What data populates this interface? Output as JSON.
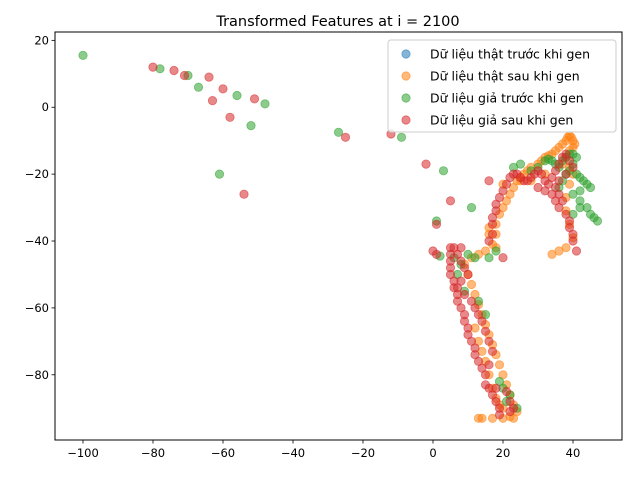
{
  "chart_data": {
    "type": "scatter",
    "title": "Transformed Features at i = 2100",
    "xlabel": "",
    "ylabel": "",
    "xlim": [
      -108,
      54
    ],
    "ylim": [
      -99.5,
      22.5
    ],
    "xticks": [
      -100,
      -80,
      -60,
      -40,
      -20,
      0,
      20,
      40
    ],
    "yticks": [
      20,
      0,
      -20,
      -40,
      -60,
      -80
    ],
    "grid": false,
    "legend_position": "top-right",
    "marker_opacity": 0.55,
    "series": [
      {
        "name": "Dữ liệu thật trước khi gen",
        "color": "#1f77b4",
        "points": []
      },
      {
        "name": "Dữ liệu thật sau khi gen",
        "color": "#ff7f0e",
        "points": [
          [
            13,
            -93
          ],
          [
            14,
            -93
          ],
          [
            17,
            -93
          ],
          [
            20,
            -93
          ],
          [
            22,
            -92.5
          ],
          [
            23,
            -93
          ],
          [
            24,
            -91
          ],
          [
            23,
            -89
          ],
          [
            22,
            -86
          ],
          [
            21,
            -83
          ],
          [
            20,
            -80
          ],
          [
            19,
            -77
          ],
          [
            18,
            -74
          ],
          [
            17,
            -71
          ],
          [
            16,
            -68
          ],
          [
            15,
            -65
          ],
          [
            14,
            -62
          ],
          [
            13,
            -59
          ],
          [
            12,
            -56
          ],
          [
            11,
            -53
          ],
          [
            10,
            -50
          ],
          [
            9,
            -47
          ],
          [
            11,
            -45
          ],
          [
            13,
            -44
          ],
          [
            15,
            -43
          ],
          [
            17,
            -41
          ],
          [
            18,
            -38
          ],
          [
            18,
            -35
          ],
          [
            19,
            -32
          ],
          [
            20,
            -30
          ],
          [
            21,
            -28
          ],
          [
            22,
            -26
          ],
          [
            23,
            -24
          ],
          [
            24,
            -22
          ],
          [
            25,
            -21
          ],
          [
            26,
            -20
          ],
          [
            27,
            -19
          ],
          [
            28,
            -18
          ],
          [
            30,
            -17
          ],
          [
            31,
            -16
          ],
          [
            32,
            -15
          ],
          [
            33,
            -14.5
          ],
          [
            34,
            -14
          ],
          [
            35,
            -13
          ],
          [
            36,
            -12
          ],
          [
            37,
            -11
          ],
          [
            38,
            -10
          ],
          [
            38.5,
            -9
          ],
          [
            39,
            -8.5
          ],
          [
            39.5,
            -9
          ],
          [
            40,
            -10
          ],
          [
            40.5,
            -11
          ],
          [
            40,
            -12
          ],
          [
            39,
            -13
          ],
          [
            38,
            -15
          ],
          [
            37,
            -17
          ],
          [
            39,
            -18
          ],
          [
            40,
            -20
          ],
          [
            39,
            -23
          ],
          [
            38,
            -27
          ],
          [
            38,
            -31
          ],
          [
            39,
            -35
          ],
          [
            40,
            -39
          ],
          [
            38,
            -42
          ],
          [
            36,
            -43
          ],
          [
            34,
            -44
          ],
          [
            16,
            -80
          ],
          [
            17,
            -84
          ],
          [
            18,
            -87
          ],
          [
            20,
            -90
          ],
          [
            19,
            -89
          ],
          [
            15,
            -76
          ],
          [
            14,
            -73
          ],
          [
            13,
            -70
          ],
          [
            12,
            -66
          ],
          [
            16,
            -36
          ],
          [
            16,
            -38
          ],
          [
            18,
            -42
          ],
          [
            20,
            -23
          ],
          [
            25,
            -22
          ],
          [
            28,
            -22
          ],
          [
            32,
            -20
          ]
        ]
      },
      {
        "name": "Dữ liệu giả trước khi gen",
        "color": "#2ca02c",
        "points": [
          [
            -100,
            15.5
          ],
          [
            -78,
            11.5
          ],
          [
            -70,
            9.5
          ],
          [
            -67,
            6
          ],
          [
            -56,
            3.5
          ],
          [
            -48,
            1
          ],
          [
            -52,
            -5.5
          ],
          [
            -61,
            -20
          ],
          [
            -27,
            -7.5
          ],
          [
            -9,
            -9
          ],
          [
            3,
            -19
          ],
          [
            11,
            -30
          ],
          [
            1,
            -34
          ],
          [
            2,
            -44.5
          ],
          [
            6,
            -45
          ],
          [
            10,
            -44
          ],
          [
            12,
            -45
          ],
          [
            23,
            -18
          ],
          [
            25,
            -17
          ],
          [
            28,
            -19
          ],
          [
            30,
            -18
          ],
          [
            32,
            -16
          ],
          [
            33,
            -15.5
          ],
          [
            34,
            -16
          ],
          [
            35,
            -17
          ],
          [
            36,
            -18
          ],
          [
            37,
            -16
          ],
          [
            38,
            -15
          ],
          [
            39,
            -14
          ],
          [
            40,
            -14
          ],
          [
            41,
            -15
          ],
          [
            40,
            -17
          ],
          [
            39,
            -19
          ],
          [
            41,
            -20
          ],
          [
            42,
            -21
          ],
          [
            43,
            -22
          ],
          [
            44,
            -23
          ],
          [
            45,
            -24
          ],
          [
            42,
            -25
          ],
          [
            40,
            -26
          ],
          [
            42,
            -28
          ],
          [
            44,
            -30
          ],
          [
            45,
            -32
          ],
          [
            46,
            -33
          ],
          [
            47,
            -34
          ],
          [
            40,
            -32
          ],
          [
            42,
            -30
          ],
          [
            38,
            -20
          ],
          [
            37,
            -22
          ],
          [
            36,
            -24
          ],
          [
            22,
            -86
          ],
          [
            21,
            -88
          ],
          [
            24,
            -90
          ],
          [
            20,
            -84
          ],
          [
            19,
            -82
          ],
          [
            15,
            -62
          ],
          [
            13,
            -58
          ],
          [
            9,
            -55
          ],
          [
            7,
            -50
          ],
          [
            8,
            -47
          ],
          [
            16,
            -45
          ],
          [
            18,
            -43
          ]
        ]
      },
      {
        "name": "Dữ liệu giả sau khi gen",
        "color": "#d62728",
        "points": [
          [
            -80,
            12
          ],
          [
            -74,
            11
          ],
          [
            -71,
            9.5
          ],
          [
            -64,
            9
          ],
          [
            -63,
            2
          ],
          [
            -60,
            5.5
          ],
          [
            -58,
            -3
          ],
          [
            -51,
            2.5
          ],
          [
            -54,
            -26
          ],
          [
            -25,
            -9
          ],
          [
            -12,
            -8
          ],
          [
            -2,
            -17
          ],
          [
            5,
            -28
          ],
          [
            1,
            -35
          ],
          [
            0,
            -43
          ],
          [
            1,
            -44
          ],
          [
            5,
            -42
          ],
          [
            5,
            -44
          ],
          [
            5,
            -46
          ],
          [
            5,
            -48
          ],
          [
            5,
            -50
          ],
          [
            6,
            -52
          ],
          [
            6,
            -54
          ],
          [
            7,
            -56
          ],
          [
            7,
            -58
          ],
          [
            8,
            -60
          ],
          [
            9,
            -62
          ],
          [
            9,
            -64
          ],
          [
            10,
            -66
          ],
          [
            10,
            -68
          ],
          [
            11,
            -70
          ],
          [
            12,
            -72
          ],
          [
            12,
            -74
          ],
          [
            13,
            -76
          ],
          [
            14,
            -78
          ],
          [
            15,
            -80
          ],
          [
            15,
            -83
          ],
          [
            16,
            -84
          ],
          [
            17,
            -86
          ],
          [
            18,
            -88
          ],
          [
            19,
            -90
          ],
          [
            19,
            -92
          ],
          [
            22,
            -91
          ],
          [
            23,
            -90
          ],
          [
            13,
            -62
          ],
          [
            12,
            -60
          ],
          [
            11,
            -58
          ],
          [
            14,
            -64
          ],
          [
            15,
            -67
          ],
          [
            16,
            -70
          ],
          [
            17,
            -73
          ],
          [
            8,
            -42
          ],
          [
            6,
            -42
          ],
          [
            7,
            -44
          ],
          [
            8,
            -46
          ],
          [
            9,
            -48
          ],
          [
            10,
            -50
          ],
          [
            8,
            -52
          ],
          [
            7,
            -54
          ],
          [
            9,
            -56
          ],
          [
            16,
            -22
          ],
          [
            16,
            -40
          ],
          [
            17,
            -38
          ],
          [
            17,
            -35
          ],
          [
            17,
            -33
          ],
          [
            18,
            -31
          ],
          [
            18,
            -29
          ],
          [
            19,
            -27
          ],
          [
            20,
            -25
          ],
          [
            21,
            -23
          ],
          [
            22,
            -21
          ],
          [
            23,
            -20
          ],
          [
            24,
            -20
          ],
          [
            25,
            -21
          ],
          [
            26,
            -22
          ],
          [
            27,
            -22
          ],
          [
            28,
            -21
          ],
          [
            29,
            -20
          ],
          [
            30,
            -19
          ],
          [
            31,
            -20
          ],
          [
            32,
            -22
          ],
          [
            33,
            -23
          ],
          [
            34,
            -21
          ],
          [
            35,
            -19
          ],
          [
            36,
            -17
          ],
          [
            37,
            -15
          ],
          [
            38,
            -14
          ],
          [
            39,
            -16
          ],
          [
            40,
            -18
          ],
          [
            38,
            -20
          ],
          [
            36,
            -22
          ],
          [
            35,
            -24
          ],
          [
            34,
            -26
          ],
          [
            35,
            -28
          ],
          [
            36,
            -30
          ],
          [
            38,
            -32
          ],
          [
            39,
            -34
          ],
          [
            39,
            -36
          ],
          [
            40,
            -38
          ],
          [
            40,
            -40
          ],
          [
            41,
            -43
          ],
          [
            37,
            -28
          ],
          [
            36,
            -26
          ],
          [
            32,
            -25
          ],
          [
            30,
            -24
          ],
          [
            20,
            -45
          ],
          [
            22,
            -88
          ],
          [
            21,
            -85
          ],
          [
            18,
            -84
          ],
          [
            16,
            -77
          ]
        ]
      }
    ]
  }
}
